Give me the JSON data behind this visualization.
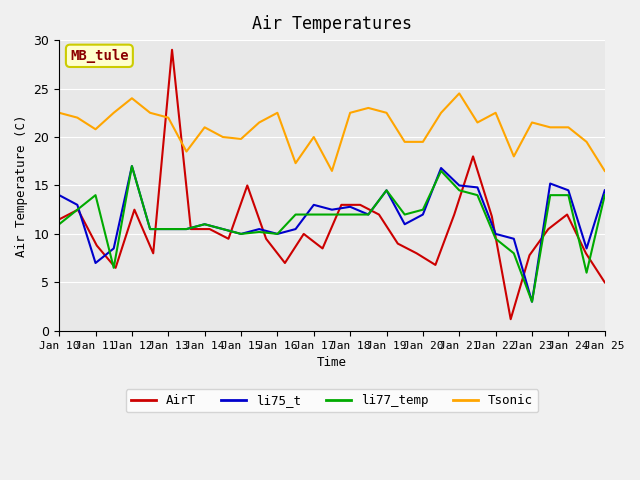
{
  "title": "Air Temperatures",
  "xlabel": "Time",
  "ylabel": "Air Temperature (C)",
  "annotation": "MB_tule",
  "ylim": [
    0,
    30
  ],
  "background_color": "#e8e8e8",
  "x_labels": [
    "Jan 10",
    "Jan 11",
    "Jan 12",
    "Jan 13",
    "Jan 14",
    "Jan 15",
    "Jan 16",
    "Jan 17",
    "Jan 18",
    "Jan 19",
    "Jan 20",
    "Jan 21",
    "Jan 22",
    "Jan 23",
    "Jan 24",
    "Jan 25"
  ],
  "AirT": [
    11.5,
    12.5,
    8.8,
    6.5,
    12.5,
    8.0,
    29.0,
    10.5,
    10.5,
    9.5,
    15.0,
    9.5,
    7.0,
    10.0,
    8.5,
    13.0,
    13.0,
    12.0,
    9.0,
    8.0,
    6.8,
    12.0,
    18.0,
    11.8,
    1.2,
    7.8,
    10.5,
    12.0,
    8.0,
    5.0
  ],
  "li75_t": [
    14.0,
    13.0,
    7.0,
    8.5,
    17.0,
    10.5,
    10.5,
    10.5,
    11.0,
    10.5,
    10.0,
    10.5,
    10.0,
    10.5,
    13.0,
    12.5,
    12.8,
    12.0,
    14.5,
    11.0,
    12.0,
    16.8,
    15.0,
    14.8,
    10.0,
    9.5,
    3.0,
    15.2,
    14.5,
    8.5,
    14.5
  ],
  "li77_temp": [
    11.0,
    12.5,
    14.0,
    6.5,
    17.0,
    10.5,
    10.5,
    10.5,
    11.0,
    10.5,
    10.0,
    10.2,
    10.0,
    12.0,
    12.0,
    12.0,
    12.0,
    12.0,
    14.5,
    12.0,
    12.5,
    16.5,
    14.5,
    14.0,
    9.5,
    8.0,
    3.0,
    14.0,
    14.0,
    6.0,
    14.0
  ],
  "Tsonic": [
    22.5,
    22.0,
    20.8,
    22.5,
    24.0,
    22.5,
    22.0,
    18.5,
    21.0,
    20.0,
    19.8,
    21.5,
    22.5,
    17.3,
    20.0,
    16.5,
    22.5,
    23.0,
    22.5,
    19.5,
    19.5,
    22.5,
    24.5,
    21.5,
    22.5,
    18.0,
    21.5,
    21.0,
    21.0,
    19.5,
    16.5
  ],
  "colors": {
    "AirT": "#cc0000",
    "li75_t": "#0000cc",
    "li77_temp": "#00aa00",
    "Tsonic": "#ffa500"
  }
}
